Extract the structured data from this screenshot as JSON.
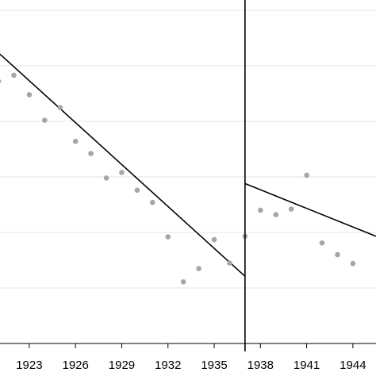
{
  "chart_data": {
    "type": "scatter",
    "title": "",
    "xlabel": "",
    "ylabel": "",
    "x_ticks": [
      "1923",
      "1926",
      "1929",
      "1932",
      "1935",
      "1938",
      "1941",
      "1944"
    ],
    "xlim": [
      1921.1,
      1945.5
    ],
    "ylim": [
      0,
      6
    ],
    "grid": true,
    "legend": "none",
    "break_x": 1937,
    "series": [
      {
        "values": [
          {
            "x": 1921,
            "y": 4.72
          },
          {
            "x": 1922,
            "y": 4.83
          },
          {
            "x": 1923,
            "y": 4.48
          },
          {
            "x": 1924,
            "y": 4.02
          },
          {
            "x": 1925,
            "y": 4.25
          },
          {
            "x": 1926,
            "y": 3.64
          },
          {
            "x": 1927,
            "y": 3.42
          },
          {
            "x": 1928,
            "y": 2.98
          },
          {
            "x": 1929,
            "y": 3.08
          },
          {
            "x": 1930,
            "y": 2.76
          },
          {
            "x": 1931,
            "y": 2.54
          },
          {
            "x": 1932,
            "y": 1.92
          },
          {
            "x": 1933,
            "y": 1.11
          },
          {
            "x": 1934,
            "y": 1.35
          },
          {
            "x": 1935,
            "y": 1.87
          },
          {
            "x": 1936,
            "y": 1.45
          },
          {
            "x": 1937,
            "y": 1.93
          },
          {
            "x": 1938,
            "y": 2.4
          },
          {
            "x": 1939,
            "y": 2.32
          },
          {
            "x": 1940,
            "y": 2.42
          },
          {
            "x": 1941,
            "y": 3.03
          },
          {
            "x": 1942,
            "y": 1.81
          },
          {
            "x": 1943,
            "y": 1.6
          },
          {
            "x": 1944,
            "y": 1.44
          }
        ]
      }
    ],
    "fit_lines": [
      {
        "x": [
          1921.1,
          1937
        ],
        "y": [
          5.21,
          1.21
        ]
      },
      {
        "x": [
          1937,
          1945.5
        ],
        "y": [
          2.88,
          1.93
        ]
      }
    ],
    "colors": {
      "points": "#a6a6a6",
      "lines": "#000000",
      "grid": "#e6e6e6",
      "axis": "#000000"
    }
  }
}
